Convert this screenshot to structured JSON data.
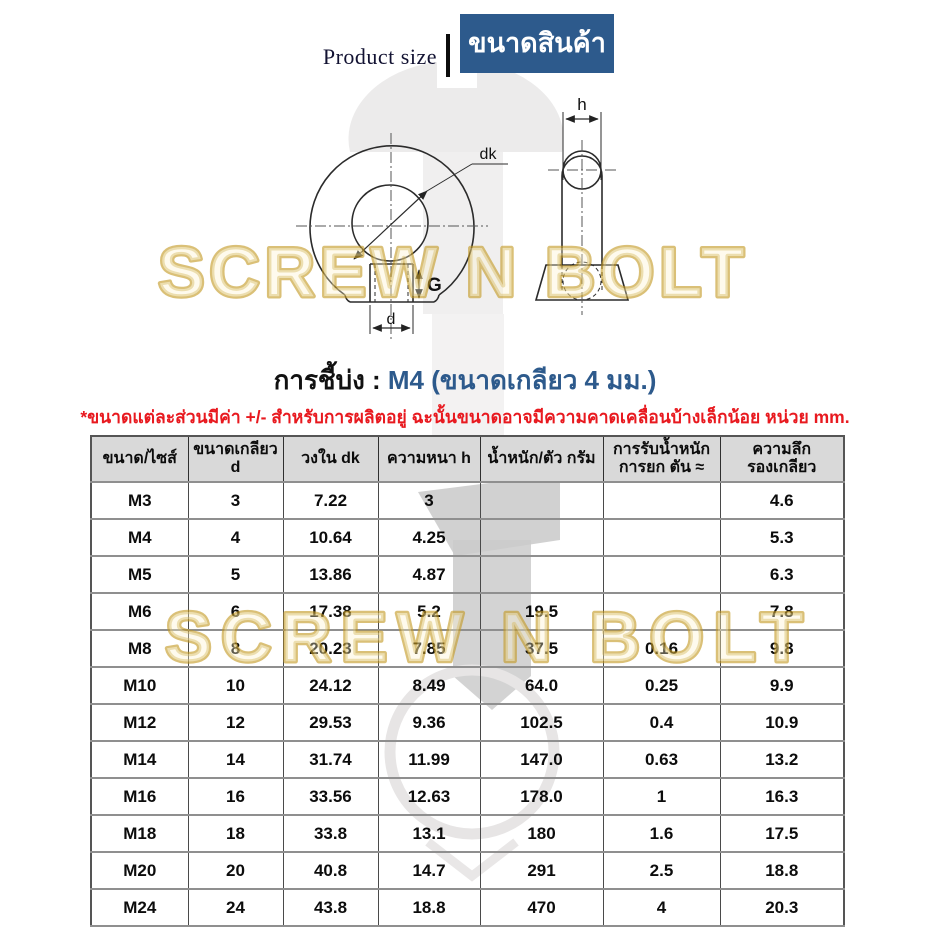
{
  "header": {
    "product_size_label": "Product size",
    "product_name_th": "ขนาดสินค้า"
  },
  "colors": {
    "brand_blue": "#2d5a8c",
    "accent_red": "#e8191f",
    "watermark_gold": "#c49a25",
    "table_header_bg": "#d9d9d9"
  },
  "watermark": {
    "text": "SCREW N BOLT"
  },
  "diagram": {
    "front_labels": {
      "dk": "dk",
      "g": "G",
      "d": "d"
    },
    "side_labels": {
      "h": "h"
    }
  },
  "title": {
    "prefix": "การชี้บ่ง : ",
    "highlight": "M4 (ขนาดเกลียว 4 มม.)"
  },
  "note": "*ขนาดแต่ละส่วนมีค่า +/- สำหรับการผลิตอยู่ ฉะนั้นขนาดอาจมีความคาดเคลื่อนบ้างเล็กน้อย หน่วย mm.",
  "table": {
    "columns": [
      "ขนาด/ไซส์",
      "ขนาดเกลียว d",
      "วงใน dk",
      "ความหนา h",
      "น้ำหนัก/ตัว กรัม",
      "การรับน้ำหนัก\nการยก ตัน ≈",
      "ความลึก\nรองเกลียว"
    ],
    "rows": [
      [
        "M3",
        "3",
        "7.22",
        "3",
        "",
        "",
        "4.6"
      ],
      [
        "M4",
        "4",
        "10.64",
        "4.25",
        "",
        "",
        "5.3"
      ],
      [
        "M5",
        "5",
        "13.86",
        "4.87",
        "",
        "",
        "6.3"
      ],
      [
        "M6",
        "6",
        "17.38",
        "5.2",
        "19.5",
        "",
        "7.8"
      ],
      [
        "M8",
        "8",
        "20.23",
        "7.85",
        "37.5",
        "0.16",
        "9.8"
      ],
      [
        "M10",
        "10",
        "24.12",
        "8.49",
        "64.0",
        "0.25",
        "9.9"
      ],
      [
        "M12",
        "12",
        "29.53",
        "9.36",
        "102.5",
        "0.4",
        "10.9"
      ],
      [
        "M14",
        "14",
        "31.74",
        "11.99",
        "147.0",
        "0.63",
        "13.2"
      ],
      [
        "M16",
        "16",
        "33.56",
        "12.63",
        "178.0",
        "1",
        "16.3"
      ],
      [
        "M18",
        "18",
        "33.8",
        "13.1",
        "180",
        "1.6",
        "17.5"
      ],
      [
        "M20",
        "20",
        "40.8",
        "14.7",
        "291",
        "2.5",
        "18.8"
      ],
      [
        "M24",
        "24",
        "43.8",
        "18.8",
        "470",
        "4",
        "20.3"
      ]
    ]
  }
}
